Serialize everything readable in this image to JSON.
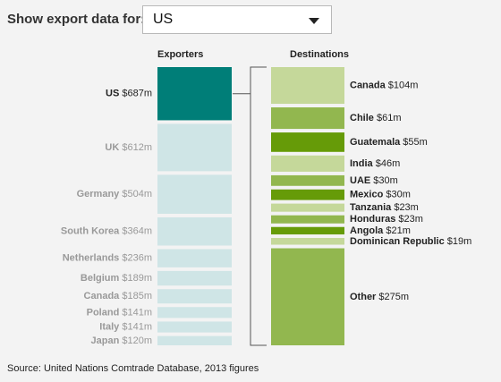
{
  "controls": {
    "label": "Show export data for:",
    "selected": "US"
  },
  "headers": {
    "exporters": "Exporters",
    "destinations": "Destinations"
  },
  "source": "Source: United Nations Comtrade Database, 2013 figures",
  "colors": {
    "exporter_selected": "#007e78",
    "exporter_other": "#cfe5e6",
    "dest_light": "#c5d89a",
    "dest_mid": "#92b74f",
    "dest_dark": "#669b08"
  },
  "chart_data": [
    {
      "type": "bar",
      "title": "Exporters",
      "categories": [
        "US",
        "UK",
        "Germany",
        "South Korea",
        "Netherlands",
        "Belgium",
        "Canada",
        "Poland",
        "Italy",
        "Japan"
      ],
      "labels": [
        "$687m",
        "$612m",
        "$504m",
        "$364m",
        "$236m",
        "$189m",
        "$185m",
        "$141m",
        "$141m",
        "$120m"
      ],
      "values": [
        687,
        612,
        504,
        364,
        236,
        189,
        185,
        141,
        141,
        120
      ],
      "selected": "US"
    },
    {
      "type": "bar",
      "title": "Destinations",
      "categories": [
        "Canada",
        "Chile",
        "Guatemala",
        "India",
        "UAE",
        "Mexico",
        "Tanzania",
        "Honduras",
        "Angola",
        "Dominican Republic",
        "Other"
      ],
      "labels": [
        "$104m",
        "$61m",
        "$55m",
        "$46m",
        "$30m",
        "$30m",
        "$23m",
        "$23m",
        "$21m",
        "$19m",
        "$275m"
      ],
      "values": [
        104,
        61,
        55,
        46,
        30,
        30,
        23,
        23,
        21,
        19,
        275
      ],
      "shades": [
        "light",
        "mid",
        "dark",
        "light",
        "mid",
        "dark",
        "light",
        "mid",
        "dark",
        "light",
        "mid"
      ]
    }
  ]
}
